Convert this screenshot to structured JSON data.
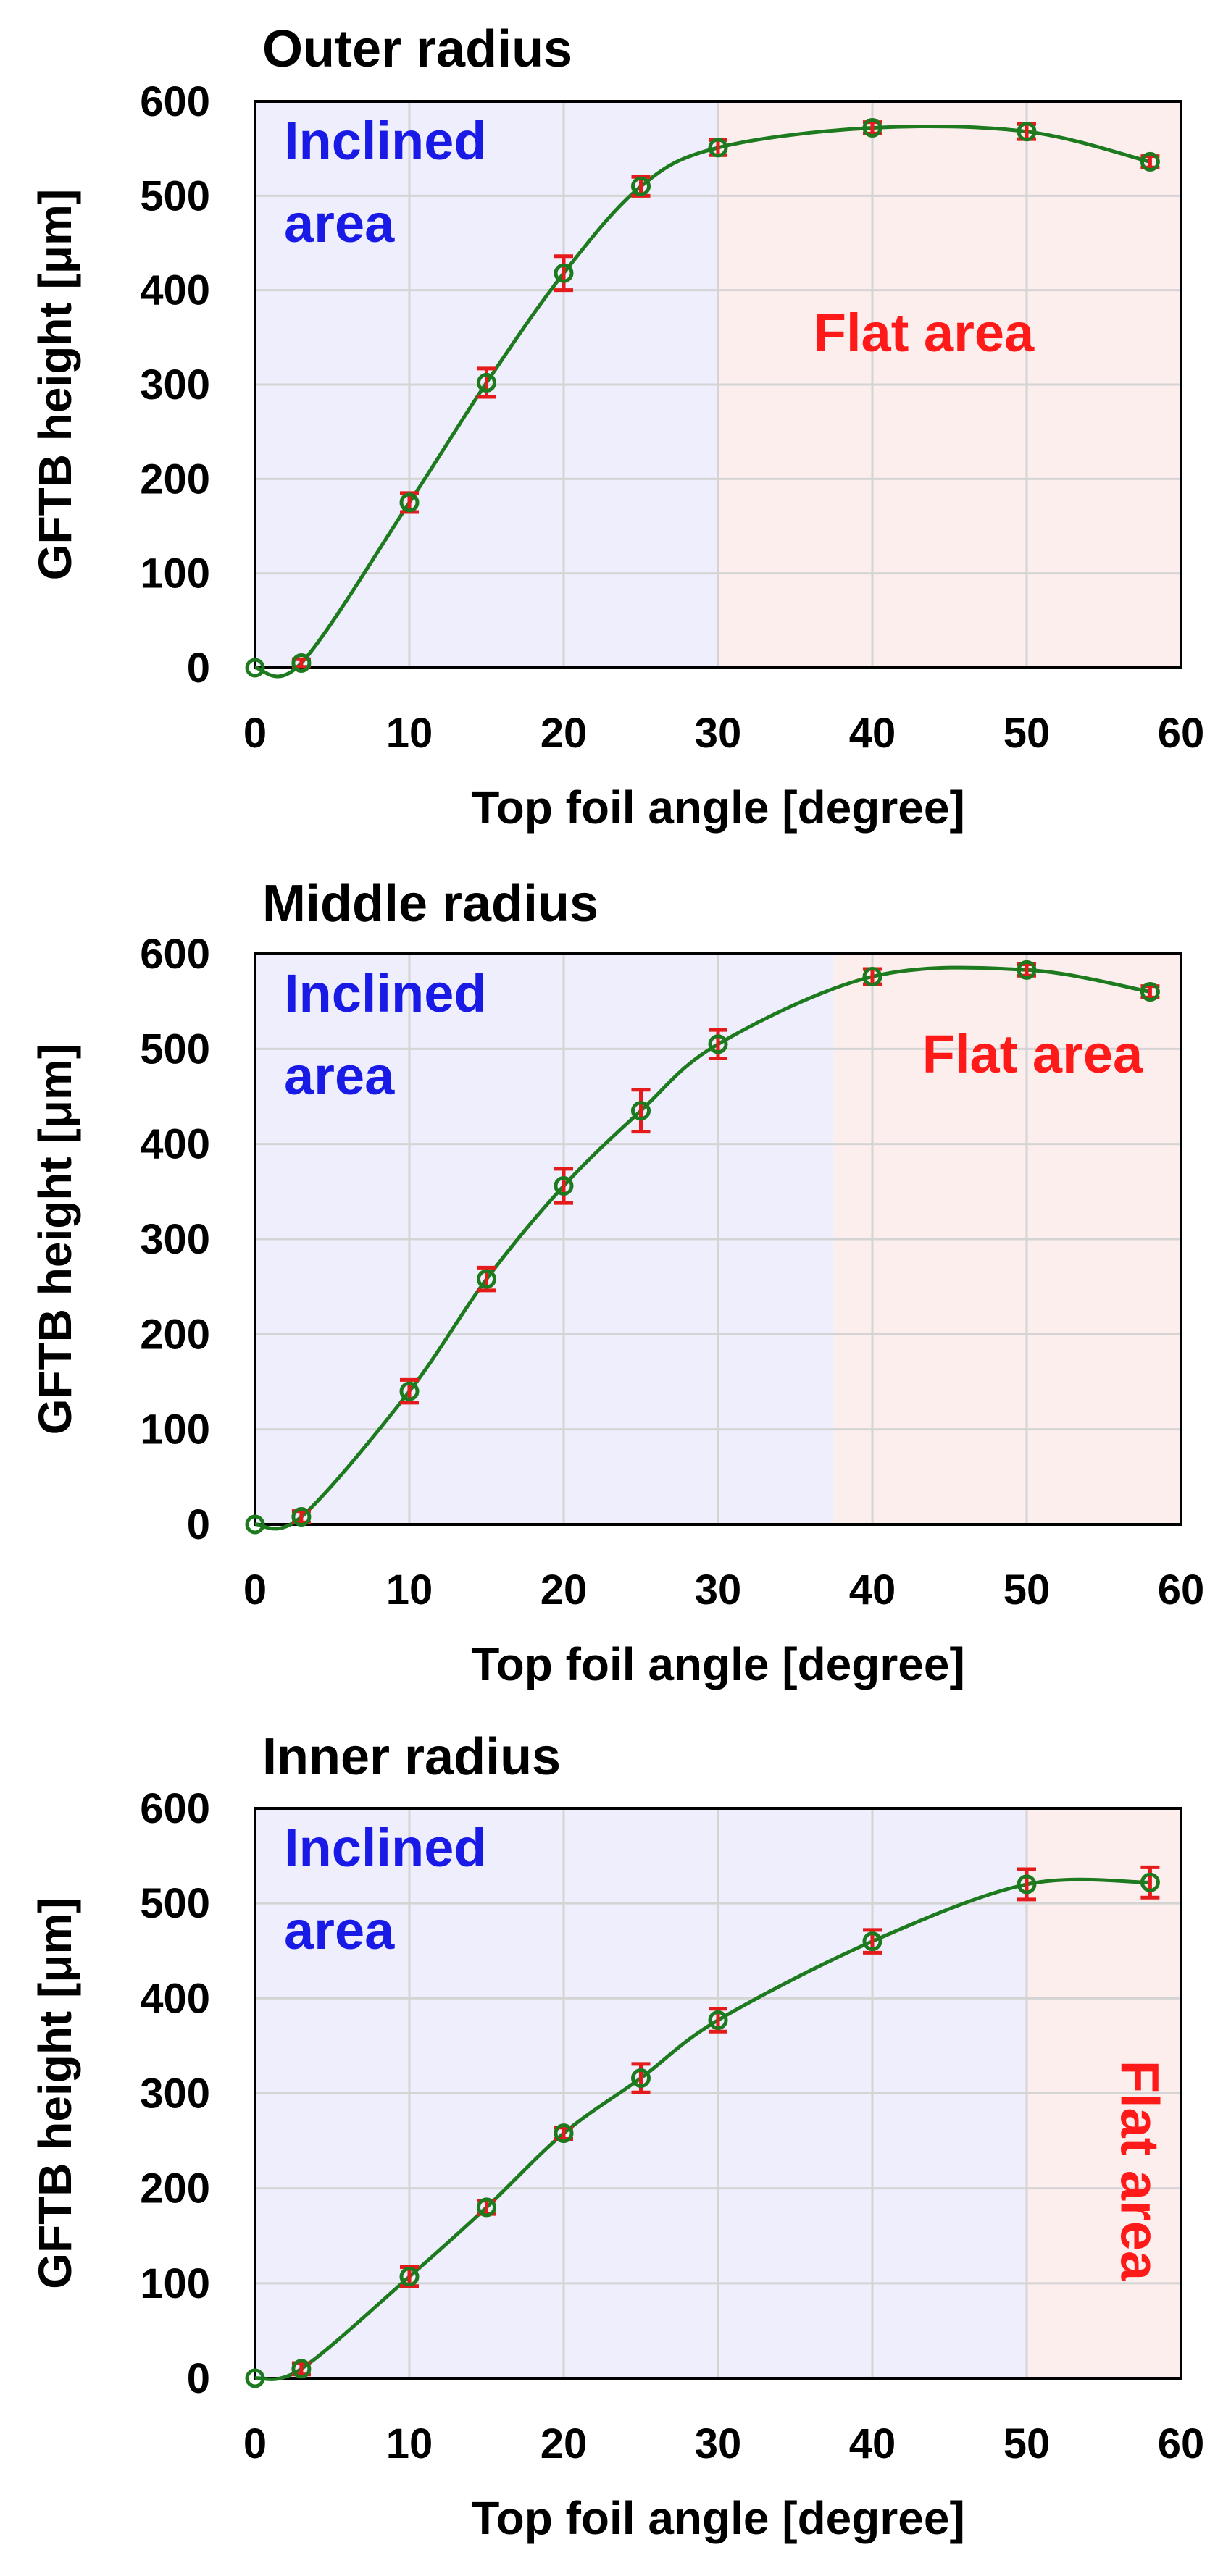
{
  "colors": {
    "inclined_bg": "#eeeefc",
    "flat_bg": "#fdeeee",
    "inclined_text": "#1a1ae6",
    "flat_text": "#ff1a1a",
    "curve": "#1e7a1e",
    "marker": "#1e7a1e",
    "error_bar": "#e51a1a",
    "grid": "#d4d4d4"
  },
  "chart_data": [
    {
      "type": "line",
      "title": "Outer radius",
      "xlabel": "Top foil angle [degree]",
      "ylabel": "GFTB height [μm]",
      "xlim": [
        0,
        60
      ],
      "ylim": [
        0,
        600
      ],
      "xticks": [
        "0",
        "10",
        "20",
        "30",
        "40",
        "50",
        "60"
      ],
      "yticks": [
        "0",
        "100",
        "200",
        "300",
        "400",
        "500",
        "600"
      ],
      "grid": true,
      "regions": [
        {
          "label": "Inclined area",
          "label_lines": [
            "Inclined",
            "area"
          ],
          "x_range": [
            0,
            30
          ],
          "color": "inclined"
        },
        {
          "label": "Flat area",
          "label_lines": [
            "Flat area"
          ],
          "x_range": [
            30,
            60
          ],
          "color": "flat"
        }
      ],
      "x": [
        0,
        3,
        10,
        15,
        20,
        25,
        30,
        40,
        50,
        58
      ],
      "y": [
        0,
        5,
        175,
        302,
        418,
        510,
        551,
        572,
        568,
        536
      ],
      "err": [
        0,
        4,
        10,
        15,
        18,
        10,
        8,
        6,
        8,
        6
      ]
    },
    {
      "type": "line",
      "title": "Middle radius",
      "xlabel": "Top foil angle [degree]",
      "ylabel": "GFTB height [μm]",
      "xlim": [
        0,
        60
      ],
      "ylim": [
        0,
        600
      ],
      "xticks": [
        "0",
        "10",
        "20",
        "30",
        "40",
        "50",
        "60"
      ],
      "yticks": [
        "0",
        "100",
        "200",
        "300",
        "400",
        "500",
        "600"
      ],
      "grid": true,
      "regions": [
        {
          "label": "Inclined area",
          "label_lines": [
            "Inclined",
            "area"
          ],
          "x_range": [
            0,
            37.5
          ],
          "color": "inclined"
        },
        {
          "label": "Flat area",
          "label_lines": [
            "Flat area"
          ],
          "x_range": [
            37.5,
            60
          ],
          "color": "flat"
        }
      ],
      "x": [
        0,
        3,
        10,
        15,
        20,
        25,
        30,
        40,
        50,
        58
      ],
      "y": [
        0,
        8,
        140,
        258,
        356,
        435,
        505,
        576,
        583,
        560
      ],
      "err": [
        0,
        6,
        12,
        12,
        18,
        22,
        15,
        8,
        6,
        6
      ]
    },
    {
      "type": "line",
      "title": "Inner radius",
      "xlabel": "Top foil angle [degree]",
      "ylabel": "GFTB height [μm]",
      "xlim": [
        0,
        60
      ],
      "ylim": [
        0,
        600
      ],
      "xticks": [
        "0",
        "10",
        "20",
        "30",
        "40",
        "50",
        "60"
      ],
      "yticks": [
        "0",
        "100",
        "200",
        "300",
        "400",
        "500",
        "600"
      ],
      "grid": true,
      "regions": [
        {
          "label": "Inclined area",
          "label_lines": [
            "Inclined",
            "area"
          ],
          "x_range": [
            0,
            50
          ],
          "color": "inclined"
        },
        {
          "label": "Flat area",
          "label_lines": [
            "Flat area"
          ],
          "x_range": [
            50,
            60
          ],
          "color": "flat",
          "vertical": true
        }
      ],
      "x": [
        0,
        3,
        10,
        15,
        20,
        25,
        30,
        40,
        50,
        58
      ],
      "y": [
        0,
        10,
        107,
        180,
        258,
        316,
        377,
        460,
        520,
        522
      ],
      "err": [
        0,
        6,
        10,
        7,
        6,
        15,
        12,
        12,
        16,
        16
      ]
    }
  ]
}
